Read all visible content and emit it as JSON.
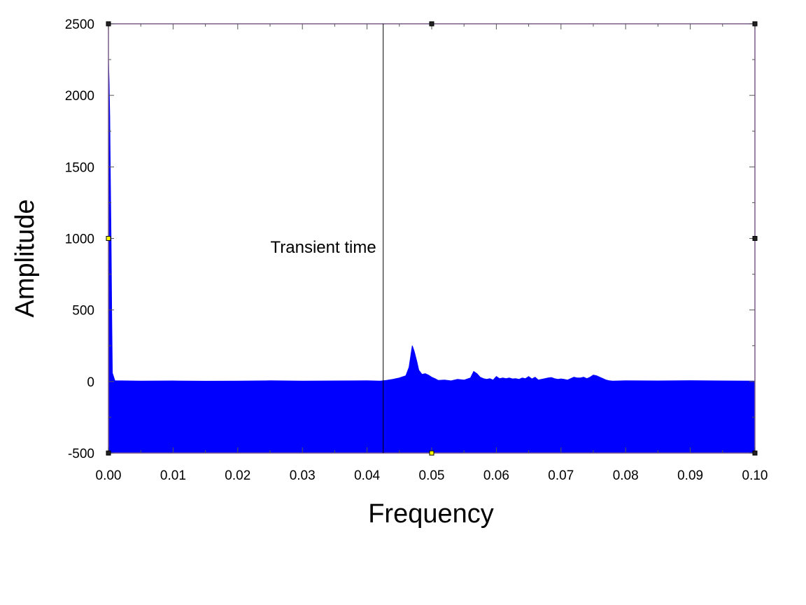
{
  "chart_data": {
    "type": "area",
    "title": "",
    "xlabel": "Frequency",
    "ylabel": "Amplitude",
    "xlim": [
      0,
      0.1
    ],
    "ylim": [
      -500,
      2500
    ],
    "x_ticks": [
      0.0,
      0.01,
      0.02,
      0.03,
      0.04,
      0.05,
      0.06,
      0.07,
      0.08,
      0.09,
      0.1
    ],
    "x_tick_labels": [
      "0.00",
      "0.01",
      "0.02",
      "0.03",
      "0.04",
      "0.05",
      "0.06",
      "0.07",
      "0.08",
      "0.09",
      "0.10"
    ],
    "y_ticks": [
      -500,
      0,
      500,
      1000,
      1500,
      2000,
      2500
    ],
    "y_tick_labels": [
      "-500",
      "0",
      "500",
      "1000",
      "1500",
      "2000",
      "2500"
    ],
    "grid": false,
    "fill_color": "#0000ff",
    "frame_color": "#7b5c8a",
    "series": [
      {
        "x": [
          0.0,
          0.0001,
          0.0002,
          0.0003,
          0.0004,
          0.0005,
          0.0006,
          0.001,
          0.005,
          0.01,
          0.015,
          0.02,
          0.025,
          0.03,
          0.035,
          0.04,
          0.042,
          0.043,
          0.044,
          0.045,
          0.046,
          0.0465,
          0.047,
          0.0473,
          0.0477,
          0.048,
          0.0485,
          0.049,
          0.0495,
          0.05,
          0.0505,
          0.051,
          0.052,
          0.053,
          0.054,
          0.055,
          0.056,
          0.0565,
          0.057,
          0.0575,
          0.058,
          0.0585,
          0.059,
          0.0595,
          0.06,
          0.0605,
          0.061,
          0.0615,
          0.062,
          0.0625,
          0.063,
          0.0635,
          0.064,
          0.0645,
          0.065,
          0.0655,
          0.066,
          0.0665,
          0.067,
          0.0675,
          0.068,
          0.0685,
          0.069,
          0.0695,
          0.07,
          0.0705,
          0.071,
          0.0715,
          0.072,
          0.0725,
          0.073,
          0.0735,
          0.074,
          0.0745,
          0.075,
          0.0755,
          0.076,
          0.0765,
          0.077,
          0.0775,
          0.078,
          0.08,
          0.085,
          0.09,
          0.095,
          0.1
        ],
        "y": [
          2250,
          2100,
          1850,
          1400,
          1000,
          480,
          60,
          5,
          3,
          4,
          2,
          3,
          5,
          3,
          4,
          5,
          3,
          8,
          15,
          25,
          40,
          100,
          250,
          210,
          140,
          80,
          50,
          55,
          45,
          30,
          20,
          8,
          10,
          5,
          15,
          10,
          25,
          70,
          55,
          30,
          20,
          15,
          20,
          10,
          35,
          20,
          25,
          20,
          25,
          18,
          20,
          15,
          25,
          20,
          35,
          18,
          30,
          10,
          15,
          20,
          25,
          28,
          20,
          15,
          18,
          15,
          10,
          20,
          30,
          25,
          25,
          30,
          20,
          30,
          45,
          40,
          30,
          20,
          10,
          5,
          3,
          5,
          4,
          6,
          4,
          3
        ],
        "y_baseline": -500
      }
    ],
    "annotations": [
      {
        "type": "vline",
        "x": 0.0425,
        "text": "Transient time"
      }
    ]
  }
}
